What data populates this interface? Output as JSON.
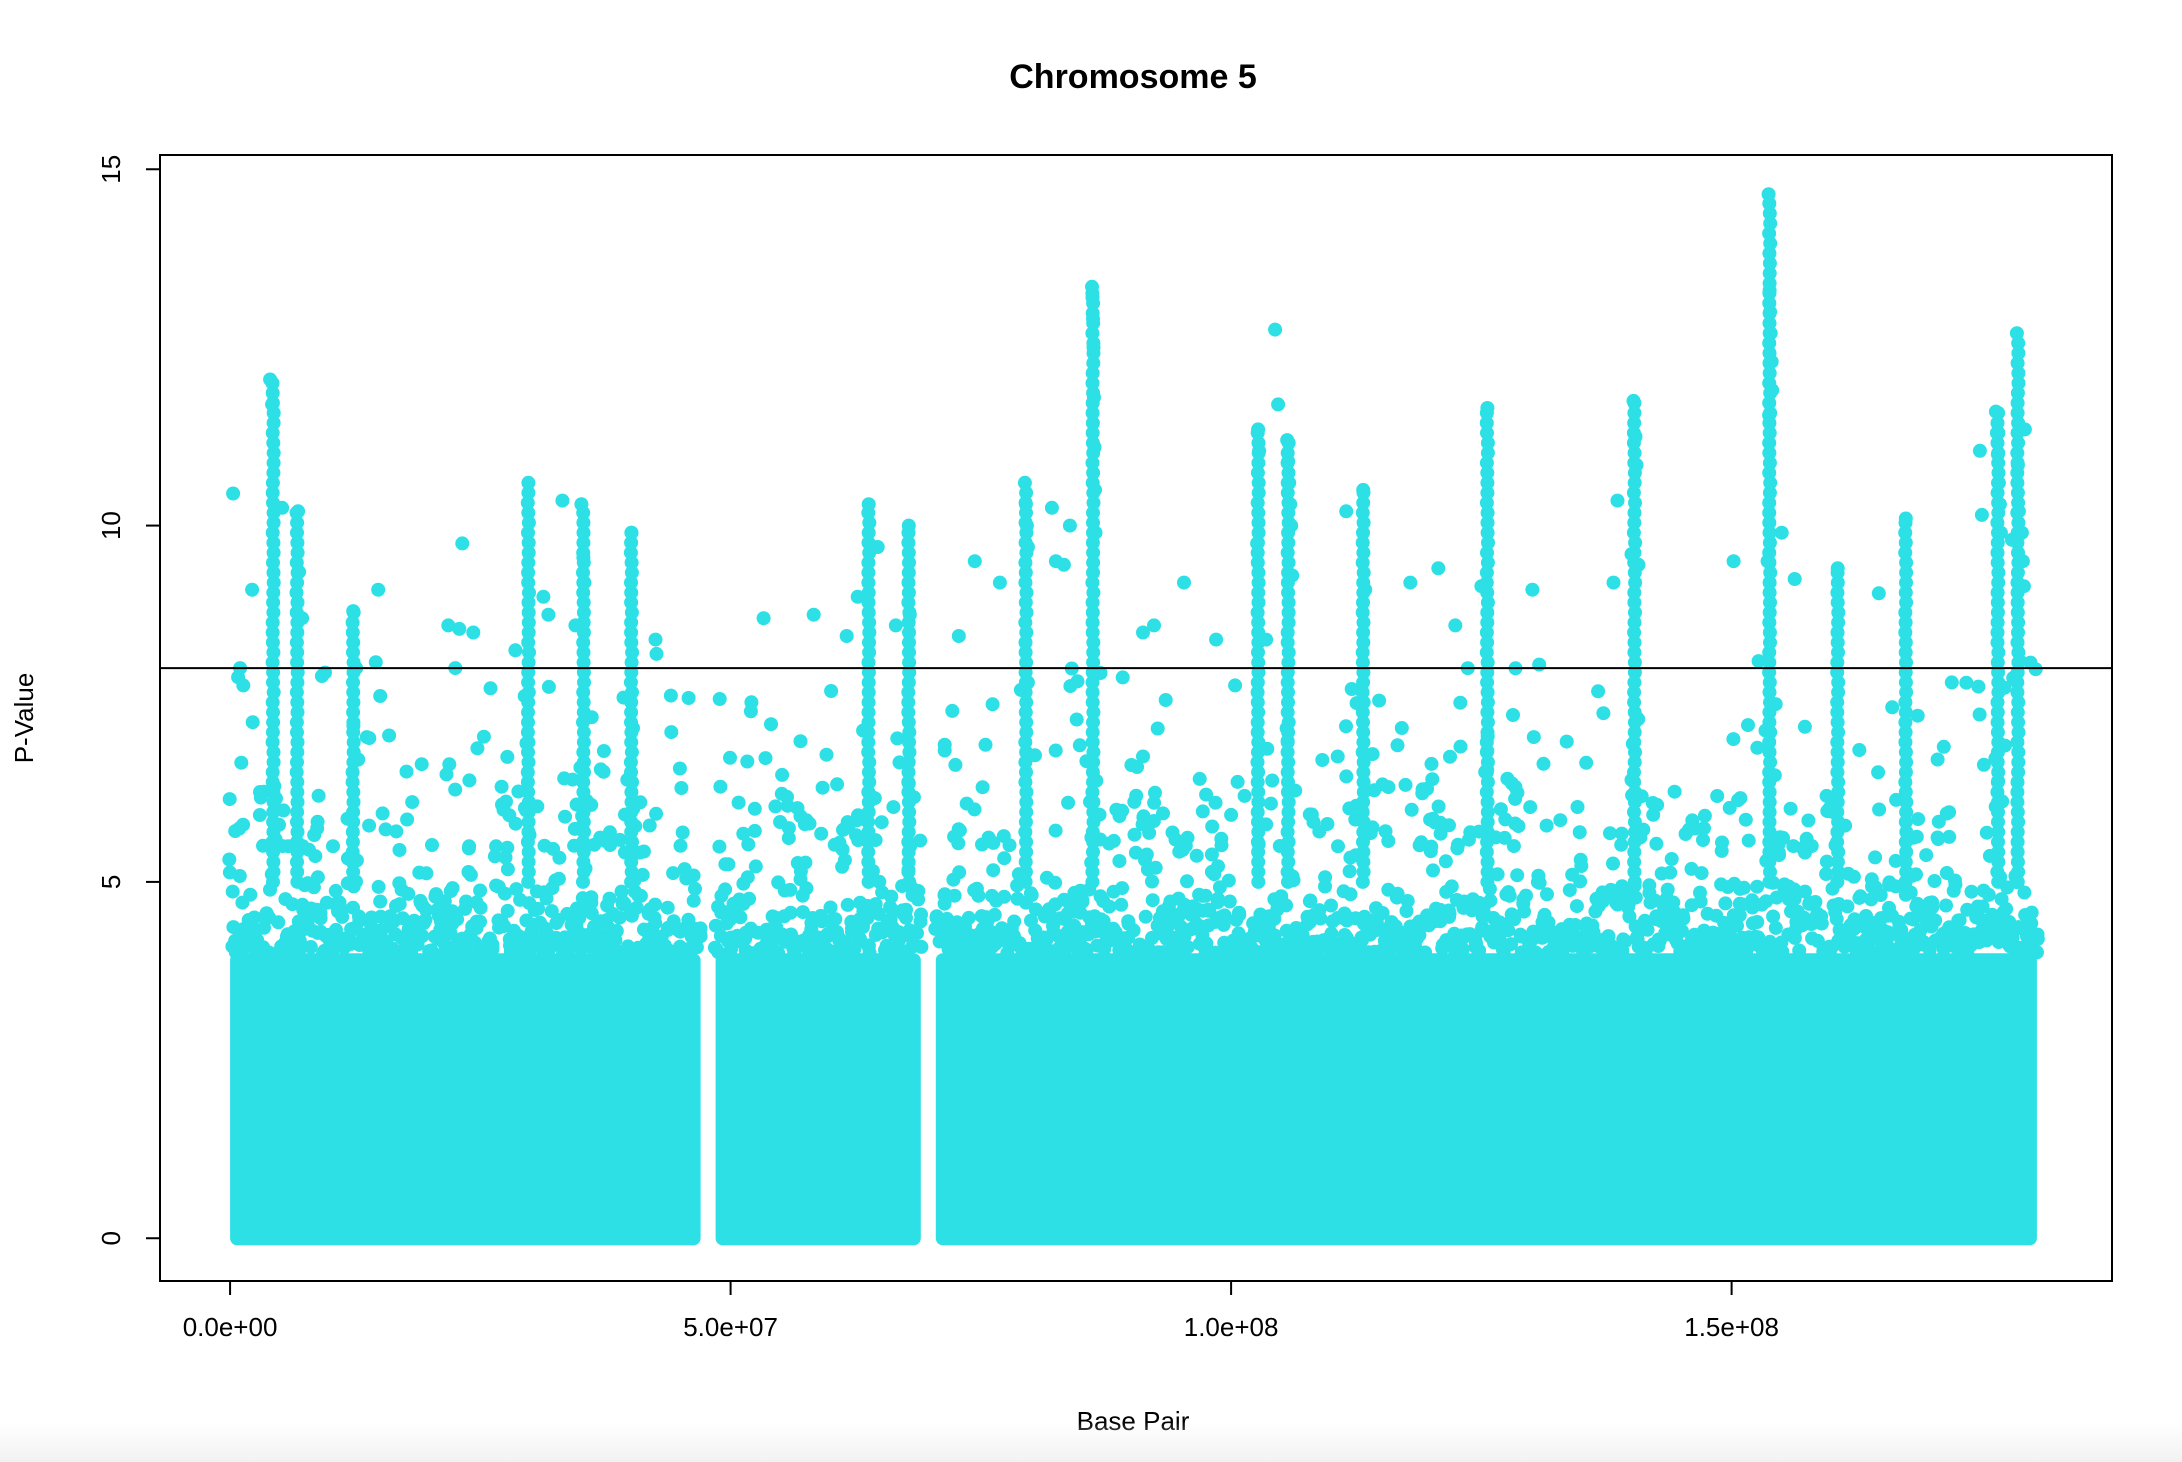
{
  "chart_data": {
    "type": "scatter",
    "title": "Chromosome 5",
    "xlabel": "Base Pair",
    "ylabel": "P-Value",
    "xlim": [
      -7000000,
      188000000
    ],
    "ylim": [
      -0.6,
      15.2
    ],
    "x_ticks": [
      0,
      50000000,
      100000000,
      150000000
    ],
    "x_tick_labels": [
      "0.0e+00",
      "5.0e+07",
      "1.0e+08",
      "1.5e+08"
    ],
    "y_ticks": [
      0,
      5,
      10,
      15
    ],
    "y_tick_labels": [
      "0",
      "5",
      "10",
      "15"
    ],
    "threshold_y": 8,
    "point_color": "#2ce0e5",
    "grid": false,
    "legend": "none",
    "series": [
      {
        "segments": [
          [
            0,
            47000000
          ],
          [
            48500000,
            69000000
          ],
          [
            70500000,
            180500000
          ]
        ],
        "dense_band_max": 5.2,
        "top_points": [
          [
            300000,
            10.45
          ],
          [
            1000000,
            8.0
          ],
          [
            2200000,
            9.1
          ],
          [
            4000000,
            12.05
          ],
          [
            4200000,
            11.7
          ],
          [
            4600000,
            10.25
          ],
          [
            5200000,
            10.25
          ],
          [
            6800000,
            10.2
          ],
          [
            6900000,
            9.35
          ],
          [
            7200000,
            8.7
          ],
          [
            12300000,
            8.8
          ],
          [
            12600000,
            8.0
          ],
          [
            14800000,
            9.1
          ],
          [
            21800000,
            8.6
          ],
          [
            22500000,
            8.0
          ],
          [
            22900000,
            8.55
          ],
          [
            23200000,
            9.75
          ],
          [
            24300000,
            8.5
          ],
          [
            28500000,
            8.25
          ],
          [
            29800000,
            10.6
          ],
          [
            31300000,
            9.0
          ],
          [
            31800000,
            8.75
          ],
          [
            33200000,
            10.35
          ],
          [
            34500000,
            8.6
          ],
          [
            35100000,
            10.3
          ],
          [
            35300000,
            9.55
          ],
          [
            35400000,
            9.2
          ],
          [
            40100000,
            9.9
          ],
          [
            42500000,
            8.4
          ],
          [
            42600000,
            8.2
          ],
          [
            53300000,
            8.7
          ],
          [
            58300000,
            8.75
          ],
          [
            61600000,
            8.45
          ],
          [
            62700000,
            9.0
          ],
          [
            63800000,
            10.3
          ],
          [
            64300000,
            9.7
          ],
          [
            64700000,
            9.7
          ],
          [
            66500000,
            8.6
          ],
          [
            67800000,
            10.0
          ],
          [
            67900000,
            8.75
          ],
          [
            72800000,
            8.45
          ],
          [
            74400000,
            9.5
          ],
          [
            76900000,
            9.2
          ],
          [
            79400000,
            10.6
          ],
          [
            79500000,
            10.3
          ],
          [
            79600000,
            10.0
          ],
          [
            79700000,
            9.7
          ],
          [
            82100000,
            10.25
          ],
          [
            82500000,
            9.5
          ],
          [
            83300000,
            9.45
          ],
          [
            83900000,
            10.0
          ],
          [
            86100000,
            13.35
          ],
          [
            86150000,
            13.2
          ],
          [
            86200000,
            12.9
          ],
          [
            86250000,
            12.5
          ],
          [
            86300000,
            11.8
          ],
          [
            86350000,
            11.1
          ],
          [
            86400000,
            10.5
          ],
          [
            86450000,
            9.9
          ],
          [
            91200000,
            8.5
          ],
          [
            92300000,
            8.6
          ],
          [
            95300000,
            9.2
          ],
          [
            98500000,
            8.4
          ],
          [
            102700000,
            11.35
          ],
          [
            102800000,
            11.05
          ],
          [
            102600000,
            9.75
          ],
          [
            103500000,
            8.4
          ],
          [
            104400000,
            12.75
          ],
          [
            104700000,
            11.7
          ],
          [
            105600000,
            11.2
          ],
          [
            105700000,
            10.9
          ],
          [
            105800000,
            10.6
          ],
          [
            105900000,
            10.3
          ],
          [
            106000000,
            10.0
          ],
          [
            106100000,
            9.3
          ],
          [
            111500000,
            10.2
          ],
          [
            113200000,
            10.5
          ],
          [
            113400000,
            9.1
          ],
          [
            117900000,
            9.2
          ],
          [
            120700000,
            9.4
          ],
          [
            122400000,
            8.6
          ],
          [
            125000000,
            9.15
          ],
          [
            125600000,
            11.65
          ],
          [
            130100000,
            9.1
          ],
          [
            138200000,
            9.2
          ],
          [
            138600000,
            10.35
          ],
          [
            140000000,
            9.6
          ],
          [
            140200000,
            11.75
          ],
          [
            140400000,
            11.25
          ],
          [
            140500000,
            10.85
          ],
          [
            140700000,
            9.45
          ],
          [
            150200000,
            9.5
          ],
          [
            153700000,
            14.65
          ],
          [
            153800000,
            13.3
          ],
          [
            153850000,
            13.0
          ],
          [
            153900000,
            12.7
          ],
          [
            154000000,
            12.3
          ],
          [
            154050000,
            11.9
          ],
          [
            153750000,
            11.55
          ],
          [
            153600000,
            9.5
          ],
          [
            155000000,
            9.9
          ],
          [
            156300000,
            9.25
          ],
          [
            160600000,
            9.4
          ],
          [
            164700000,
            9.05
          ],
          [
            167400000,
            10.1
          ],
          [
            172000000,
            7.8
          ],
          [
            175000000,
            10.15
          ],
          [
            174800000,
            11.05
          ],
          [
            176400000,
            11.6
          ],
          [
            176500000,
            11.3
          ],
          [
            176600000,
            11.0
          ],
          [
            176700000,
            10.6
          ],
          [
            176800000,
            10.3
          ],
          [
            176900000,
            9.9
          ],
          [
            178000000,
            9.8
          ],
          [
            178500000,
            12.7
          ],
          [
            178600000,
            10.85
          ],
          [
            178700000,
            10.2
          ],
          [
            179000000,
            9.9
          ],
          [
            179300000,
            11.35
          ],
          [
            179100000,
            9.5
          ],
          [
            179200000,
            9.15
          ],
          [
            178800000,
            8.1
          ]
        ],
        "spikes": [
          [
            4300000,
            12.05
          ],
          [
            6700000,
            10.2
          ],
          [
            12300000,
            8.8
          ],
          [
            29800000,
            10.6
          ],
          [
            35300000,
            10.3
          ],
          [
            40100000,
            9.9
          ],
          [
            63800000,
            10.3
          ],
          [
            67800000,
            10.0
          ],
          [
            79500000,
            10.6
          ],
          [
            86200000,
            13.35
          ],
          [
            102700000,
            11.35
          ],
          [
            105700000,
            11.2
          ],
          [
            113200000,
            10.5
          ],
          [
            125600000,
            11.65
          ],
          [
            140300000,
            11.75
          ],
          [
            153800000,
            14.65
          ],
          [
            160600000,
            9.4
          ],
          [
            167400000,
            10.1
          ],
          [
            176600000,
            11.6
          ],
          [
            178600000,
            12.7
          ]
        ]
      }
    ]
  }
}
